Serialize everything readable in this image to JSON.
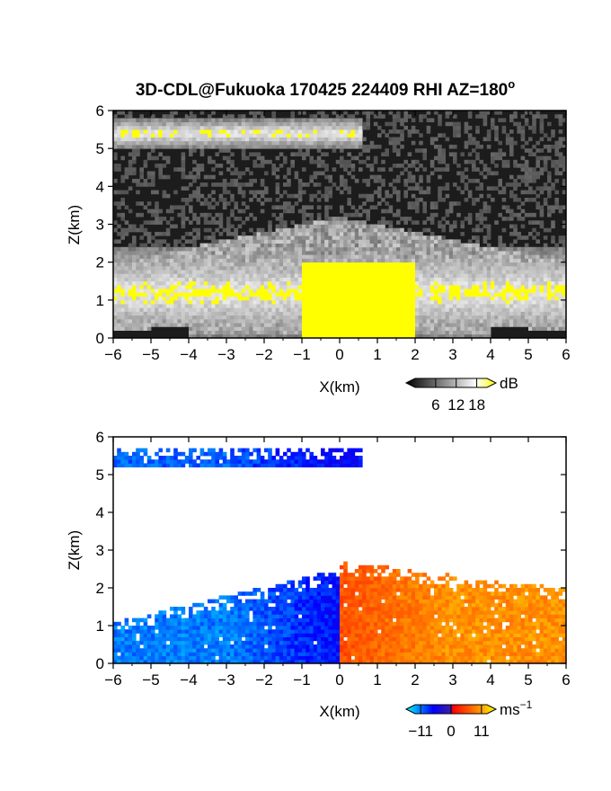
{
  "chart_data": [
    {
      "type": "heatmap",
      "title": "3D-CDL@Fukuoka 170425 224409 RHI AZ=180",
      "title_superscript": "o",
      "xlabel": "X(km)",
      "ylabel": "Z(km)",
      "xlim": [
        -6,
        6
      ],
      "ylim": [
        0,
        6
      ],
      "xticks": [
        -6,
        -5,
        -4,
        -3,
        -2,
        -1,
        0,
        1,
        2,
        3,
        4,
        5,
        6
      ],
      "yticks": [
        0,
        1,
        2,
        3,
        4,
        5,
        6
      ],
      "colorbar": {
        "unit": "dB",
        "ticks": [
          6,
          12,
          18
        ],
        "range": [
          0,
          21
        ],
        "colors": [
          "#000000",
          "#ffffff",
          "#ffff00"
        ]
      },
      "layers": [
        {
          "kind": "haze",
          "z": 5.4,
          "x_range": [
            -6,
            0.6
          ],
          "thickness": 0.4
        },
        {
          "kind": "haze",
          "z": 1.2,
          "x_range": [
            -6,
            6
          ],
          "thickness": 1.2
        },
        {
          "kind": "strong",
          "z": 1.0,
          "x_range": [
            -1.0,
            2.0
          ],
          "thickness": 1.0
        }
      ]
    },
    {
      "type": "heatmap",
      "xlabel": "X(km)",
      "ylabel": "Z(km)",
      "xlim": [
        -6,
        6
      ],
      "ylim": [
        0,
        6
      ],
      "xticks": [
        -6,
        -5,
        -4,
        -3,
        -2,
        -1,
        0,
        1,
        2,
        3,
        4,
        5,
        6
      ],
      "yticks": [
        0,
        1,
        2,
        3,
        4,
        5,
        6
      ],
      "colorbar": {
        "unit": "ms",
        "unit_superscript": "−1",
        "tick_labels": [
          "−11",
          "0",
          "11"
        ],
        "ticks": [
          -11,
          0,
          11
        ],
        "range": [
          -13,
          13
        ],
        "colors": [
          "#00ffff",
          "#0000ff",
          "#ff0000",
          "#ffff00"
        ]
      },
      "regions": [
        {
          "name": "upper-layer",
          "x_range": [
            -6,
            0.6
          ],
          "z_range": [
            5.2,
            5.7
          ],
          "velocity": -8
        },
        {
          "name": "lower-negative",
          "x_range": [
            -6,
            0
          ],
          "z_range": [
            0,
            2.5
          ],
          "velocity": -9
        },
        {
          "name": "lower-positive",
          "x_range": [
            0,
            6
          ],
          "z_range": [
            0,
            2.7
          ],
          "velocity": 8
        }
      ]
    }
  ]
}
